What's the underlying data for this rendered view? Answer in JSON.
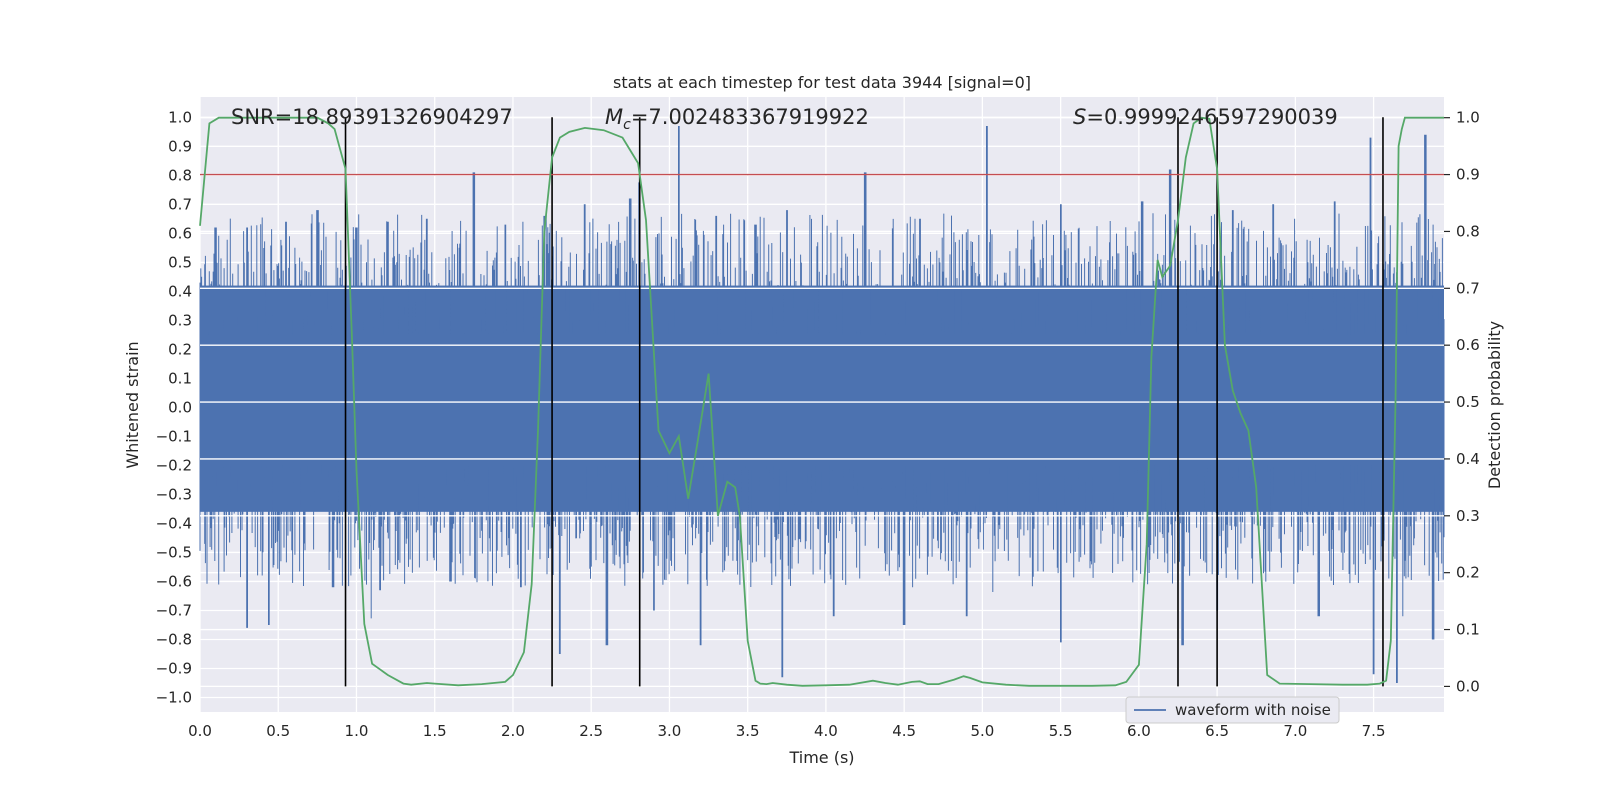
{
  "chart_data": {
    "type": "line",
    "title": "stats at each timestep for test data 3944 [signal=0]",
    "xlabel": "Time (s)",
    "ylabel": "Whitened strain",
    "y2label": "Detection probability",
    "xlim": [
      0.0,
      7.95
    ],
    "ylim": [
      -1.05,
      1.07
    ],
    "y2lim": [
      -0.045,
      1.0364
    ],
    "xticks": [
      "0.0",
      "0.5",
      "1.0",
      "1.5",
      "2.0",
      "2.5",
      "3.0",
      "3.5",
      "4.0",
      "4.5",
      "5.0",
      "5.5",
      "6.0",
      "6.5",
      "7.0",
      "7.5"
    ],
    "yticks": [
      "1.0",
      "0.9",
      "0.8",
      "0.7",
      "0.6",
      "0.5",
      "0.4",
      "0.3",
      "0.2",
      "0.1",
      "0.0",
      "−0.1",
      "−0.2",
      "−0.3",
      "−0.4",
      "−0.5",
      "−0.6",
      "−0.7",
      "−0.8",
      "−0.9",
      "−1.0"
    ],
    "y2ticks": [
      "1.0",
      "0.9",
      "0.8",
      "0.7",
      "0.6",
      "0.5",
      "0.4",
      "0.3",
      "0.2",
      "0.1",
      "0.0"
    ],
    "annotations": {
      "snr": "SNR=18.89391326904297",
      "mc_symbol": "M",
      "mc_sub": "c",
      "mc_value": "=7.002483367919922",
      "s_symbol": "S",
      "s_value": "=0.9999246597290039"
    },
    "legend": {
      "label": "waveform with noise",
      "position": "lower-right"
    },
    "threshold": {
      "value": 0.9,
      "axis": "right",
      "color": "#c44e52"
    },
    "segment_markers": [
      0.93,
      2.25,
      2.81,
      6.25,
      6.5,
      7.56
    ],
    "segment_marker_ymax": 0.9,
    "waveform": {
      "name": "waveform with noise",
      "color": "#4c72b0",
      "core_band": [
        -0.36,
        0.42
      ],
      "peaks_pos": [
        [
          0.1,
          0.62
        ],
        [
          0.3,
          0.62
        ],
        [
          0.55,
          0.64
        ],
        [
          0.75,
          0.68
        ],
        [
          1.0,
          0.62
        ],
        [
          1.2,
          0.64
        ],
        [
          1.45,
          0.65
        ],
        [
          1.75,
          0.81
        ],
        [
          1.95,
          0.63
        ],
        [
          2.2,
          0.66
        ],
        [
          2.46,
          0.7
        ],
        [
          2.75,
          0.72
        ],
        [
          3.06,
          0.97
        ],
        [
          3.3,
          0.66
        ],
        [
          3.55,
          0.63
        ],
        [
          3.75,
          0.68
        ],
        [
          4.25,
          0.81
        ],
        [
          4.6,
          0.65
        ],
        [
          5.03,
          0.97
        ],
        [
          5.5,
          0.7
        ],
        [
          6.02,
          0.71
        ],
        [
          6.2,
          0.82
        ],
        [
          6.6,
          0.68
        ],
        [
          6.86,
          0.7
        ],
        [
          7.25,
          0.71
        ],
        [
          7.48,
          0.93
        ],
        [
          7.83,
          0.94
        ]
      ],
      "peaks_neg": [
        [
          0.3,
          -0.76
        ],
        [
          0.44,
          -0.75
        ],
        [
          0.85,
          -0.62
        ],
        [
          1.15,
          -0.63
        ],
        [
          1.6,
          -0.6
        ],
        [
          2.05,
          -0.62
        ],
        [
          2.3,
          -0.85
        ],
        [
          2.6,
          -0.82
        ],
        [
          2.9,
          -0.7
        ],
        [
          3.2,
          -0.82
        ],
        [
          3.72,
          -0.93
        ],
        [
          4.05,
          -0.72
        ],
        [
          4.5,
          -0.75
        ],
        [
          4.9,
          -0.72
        ],
        [
          5.5,
          -0.81
        ],
        [
          6.28,
          -0.82
        ],
        [
          6.5,
          -0.7
        ],
        [
          7.15,
          -0.72
        ],
        [
          7.5,
          -0.92
        ],
        [
          7.65,
          -0.95
        ],
        [
          7.88,
          -0.8
        ]
      ]
    },
    "series": [
      {
        "name": "Detection probability",
        "axis": "right",
        "color": "#55a868",
        "x": [
          0.0,
          0.06,
          0.12,
          0.2,
          0.4,
          0.6,
          0.75,
          0.82,
          0.86,
          0.9,
          0.93,
          0.97,
          1.0,
          1.05,
          1.1,
          1.15,
          1.2,
          1.3,
          1.35,
          1.45,
          1.5,
          1.65,
          1.8,
          1.95,
          2.0,
          2.07,
          2.12,
          2.16,
          2.2,
          2.25,
          2.3,
          2.36,
          2.46,
          2.58,
          2.7,
          2.8,
          2.85,
          2.93,
          3.0,
          3.06,
          3.12,
          3.18,
          3.25,
          3.31,
          3.37,
          3.42,
          3.45,
          3.5,
          3.55,
          3.58,
          3.62,
          3.66,
          3.75,
          3.85,
          4.0,
          4.15,
          4.3,
          4.38,
          4.46,
          4.55,
          4.6,
          4.65,
          4.72,
          4.82,
          4.88,
          4.92,
          5.0,
          5.15,
          5.3,
          5.5,
          5.7,
          5.85,
          5.92,
          6.0,
          6.05,
          6.08,
          6.12,
          6.15,
          6.2,
          6.25,
          6.3,
          6.35,
          6.4,
          6.45,
          6.5,
          6.55,
          6.6,
          6.65,
          6.7,
          6.75,
          6.82,
          6.9,
          7.1,
          7.3,
          7.46,
          7.54,
          7.58,
          7.61,
          7.64,
          7.66,
          7.68,
          7.7,
          7.75,
          7.85,
          7.95
        ],
        "y": [
          0.81,
          0.99,
          1.0,
          1.0,
          1.0,
          1.0,
          1.0,
          0.99,
          0.98,
          0.94,
          0.91,
          0.62,
          0.38,
          0.11,
          0.04,
          0.03,
          0.02,
          0.005,
          0.003,
          0.006,
          0.005,
          0.002,
          0.004,
          0.008,
          0.02,
          0.06,
          0.18,
          0.45,
          0.8,
          0.93,
          0.965,
          0.975,
          0.982,
          0.978,
          0.965,
          0.92,
          0.82,
          0.45,
          0.41,
          0.44,
          0.33,
          0.43,
          0.55,
          0.3,
          0.36,
          0.35,
          0.3,
          0.08,
          0.01,
          0.005,
          0.004,
          0.006,
          0.003,
          0.001,
          0.002,
          0.003,
          0.01,
          0.006,
          0.003,
          0.008,
          0.009,
          0.004,
          0.004,
          0.012,
          0.018,
          0.015,
          0.007,
          0.003,
          0.001,
          0.001,
          0.001,
          0.002,
          0.008,
          0.038,
          0.25,
          0.58,
          0.75,
          0.72,
          0.74,
          0.82,
          0.93,
          0.99,
          1.0,
          0.998,
          0.91,
          0.6,
          0.52,
          0.48,
          0.45,
          0.35,
          0.02,
          0.005,
          0.004,
          0.003,
          0.003,
          0.005,
          0.01,
          0.08,
          0.5,
          0.95,
          0.98,
          1.0,
          1.0,
          1.0,
          1.0
        ]
      }
    ]
  }
}
